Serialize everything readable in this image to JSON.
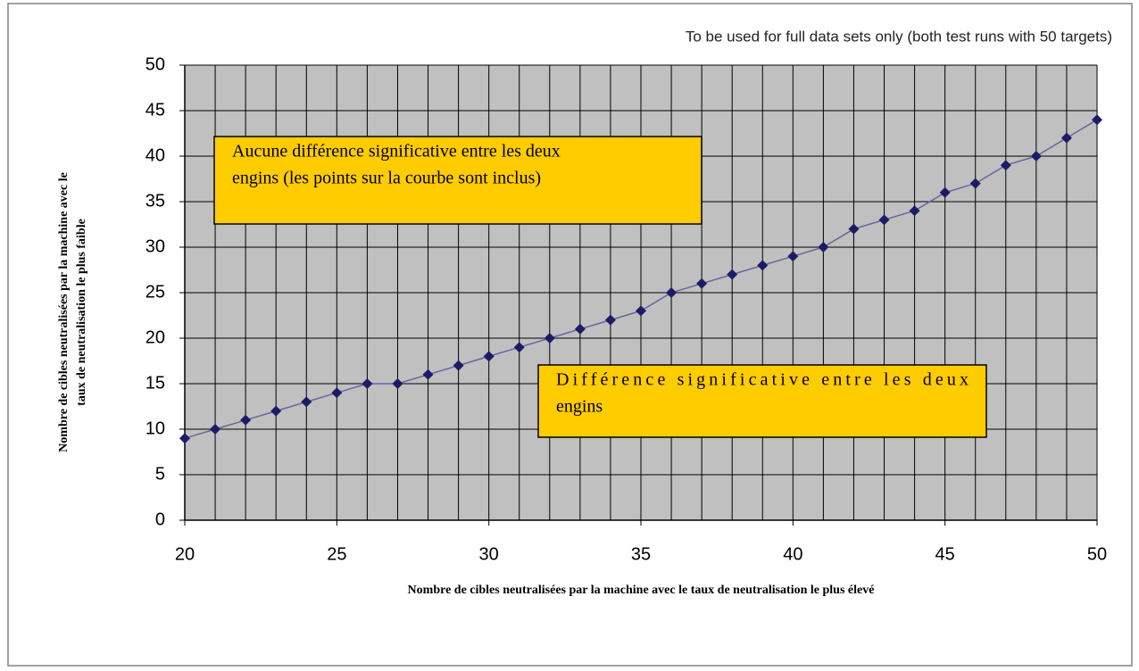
{
  "chart_data": {
    "type": "line",
    "subtitle": "To be used for full data sets only (both test runs with 50 targets)",
    "x_label": "Nombre de cibles neutralisées par la machine  avec le taux de neutralisation le plus élevé",
    "y_label": [
      "Nombre de cibles neutralisées par la machine  avec le",
      "taux de neutralisation le plus faible"
    ],
    "x": [
      20,
      21,
      22,
      23,
      24,
      25,
      26,
      27,
      28,
      29,
      30,
      31,
      32,
      33,
      34,
      35,
      36,
      37,
      38,
      39,
      40,
      41,
      42,
      43,
      44,
      45,
      46,
      47,
      48,
      49,
      50
    ],
    "series": [
      {
        "color": "#66669a",
        "marker_color": "#1c1c66",
        "values": [
          9,
          10,
          11,
          12,
          13,
          14,
          15,
          15,
          16,
          17,
          18,
          19,
          20,
          21,
          22,
          23,
          25,
          26,
          27,
          28,
          29,
          30,
          32,
          33,
          34,
          36,
          37,
          39,
          40,
          42,
          44
        ]
      }
    ],
    "xlim": [
      20,
      50
    ],
    "xticks": [
      20,
      25,
      30,
      35,
      40,
      45,
      50
    ],
    "xminorticks": [
      20,
      21,
      22,
      23,
      24,
      25,
      26,
      27,
      28,
      29,
      30,
      31,
      32,
      33,
      34,
      35,
      36,
      37,
      38,
      39,
      40,
      41,
      42,
      43,
      44,
      45,
      46,
      47,
      48,
      49,
      50
    ],
    "ylim": [
      0,
      50
    ],
    "yticks": [
      0,
      5,
      10,
      15,
      20,
      25,
      30,
      35,
      40,
      45,
      50
    ],
    "grid": true,
    "annotations": [
      {
        "lines": [
          "Aucune différence significative entre les deux",
          "engins (les points sur la courbe sont inclus)"
        ],
        "color": "#ffcc00"
      },
      {
        "lines": [
          "Différence   significative   entre   les   deux",
          "engins"
        ],
        "color": "#ffcc00"
      }
    ]
  }
}
